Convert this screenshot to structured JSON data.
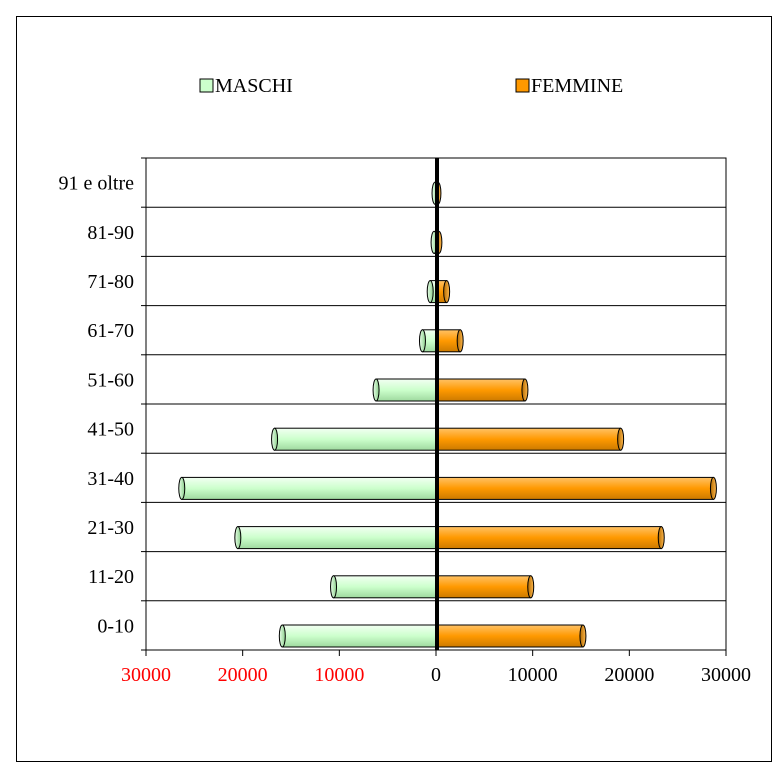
{
  "chart_data": {
    "type": "bar",
    "orientation": "horizontal",
    "layout": "population-pyramid",
    "categories": [
      "0-10",
      "11-20",
      "21-30",
      "31-40",
      "41-50",
      "51-60",
      "61-70",
      "71-80",
      "81-90",
      "91 e oltre"
    ],
    "series": [
      {
        "name": "MASCHI",
        "color": "#ccffcc",
        "values": [
          15900,
          10600,
          20500,
          26300,
          16700,
          6200,
          1400,
          600,
          200,
          100
        ]
      },
      {
        "name": "FEMMINE",
        "color": "#ff9900",
        "values": [
          15200,
          9800,
          23300,
          28700,
          19100,
          9200,
          2500,
          1100,
          300,
          200
        ]
      }
    ],
    "x_ticks": [
      "30000",
      "20000",
      "10000",
      "0",
      "10000",
      "20000",
      "30000"
    ],
    "x_tick_values": [
      -30000,
      -20000,
      -10000,
      0,
      10000,
      20000,
      30000
    ],
    "negative_tick_color": "#ff0000",
    "xlim": [
      -30000,
      30000
    ],
    "legend_position": "top",
    "grid": "horizontal"
  }
}
